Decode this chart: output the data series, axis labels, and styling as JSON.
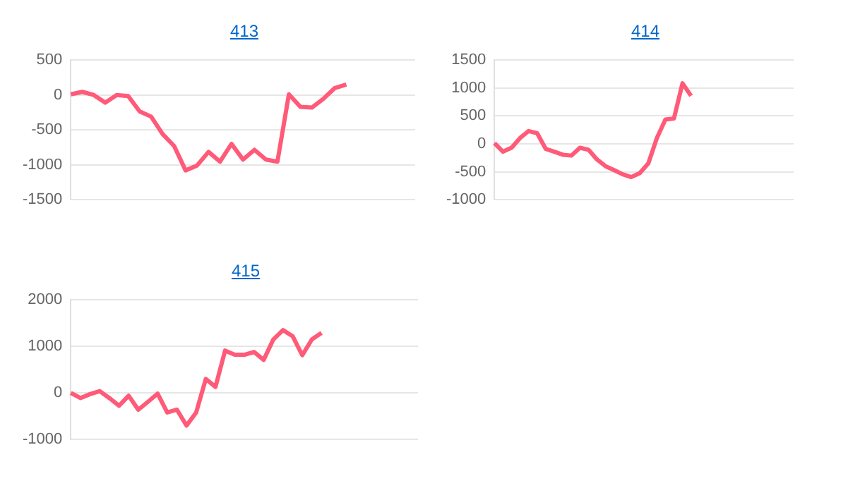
{
  "chart_data": [
    {
      "type": "line",
      "title": "413",
      "categories": [
        null,
        null,
        null,
        null,
        null,
        null,
        null,
        null,
        null,
        null,
        null,
        null,
        null,
        null,
        null,
        null,
        null,
        null,
        null,
        null,
        null,
        null,
        null,
        null,
        null,
        null,
        null,
        null,
        null,
        null,
        null
      ],
      "series": [
        {
          "color": "#ff5a78",
          "values": [
            10,
            45,
            0,
            -110,
            0,
            -15,
            -235,
            -310,
            -560,
            -730,
            -1080,
            -1010,
            -815,
            -955,
            -700,
            -925,
            -785,
            -925,
            -955,
            10,
            -170,
            -180,
            -55,
            100,
            150,
            null,
            null,
            null,
            null,
            null,
            null
          ]
        }
      ],
      "ylim": [
        -1500,
        500
      ],
      "yticks": [
        -1500,
        -1000,
        -500,
        0,
        500
      ],
      "grid": "y",
      "marker": "none",
      "line_style": "solid"
    },
    {
      "type": "line",
      "title": "414",
      "categories": [
        null,
        null,
        null,
        null,
        null,
        null,
        null,
        null,
        null,
        null,
        null,
        null,
        null,
        null,
        null,
        null,
        null,
        null,
        null,
        null,
        null,
        null,
        null,
        null,
        null,
        null,
        null,
        null,
        null,
        null,
        null,
        null,
        null,
        null,
        null,
        null
      ],
      "series": [
        {
          "color": "#ff5a78",
          "values": [
            15,
            -140,
            -70,
            105,
            230,
            190,
            -90,
            -140,
            -195,
            -210,
            -70,
            -105,
            -280,
            -400,
            -470,
            -545,
            -595,
            -525,
            -350,
            105,
            435,
            455,
            1085,
            860,
            null,
            null,
            null,
            null,
            null,
            null,
            null,
            null,
            null,
            null,
            null,
            null
          ]
        }
      ],
      "ylim": [
        -1000,
        1500
      ],
      "yticks": [
        -1000,
        -500,
        0,
        500,
        1000,
        1500
      ],
      "grid": "y",
      "marker": "none",
      "line_style": "solid"
    },
    {
      "type": "line",
      "title": "415",
      "categories": [
        null,
        null,
        null,
        null,
        null,
        null,
        null,
        null,
        null,
        null,
        null,
        null,
        null,
        null,
        null,
        null,
        null,
        null,
        null,
        null,
        null,
        null,
        null,
        null,
        null,
        null,
        null,
        null,
        null,
        null,
        null,
        null,
        null,
        null,
        null,
        null,
        null
      ],
      "series": [
        {
          "color": "#ff5a78",
          "values": [
            0,
            -110,
            -25,
            40,
            -110,
            -275,
            -60,
            -360,
            -190,
            -15,
            -420,
            -360,
            -700,
            -420,
            300,
            130,
            910,
            820,
            820,
            880,
            710,
            1150,
            1350,
            1220,
            810,
            1150,
            1290,
            null,
            null,
            null,
            null,
            null,
            null,
            null,
            null,
            null,
            null
          ]
        }
      ],
      "ylim": [
        -1000,
        2000
      ],
      "yticks": [
        -1000,
        0,
        1000,
        2000
      ],
      "grid": "y",
      "marker": "none",
      "line_style": "solid"
    }
  ]
}
